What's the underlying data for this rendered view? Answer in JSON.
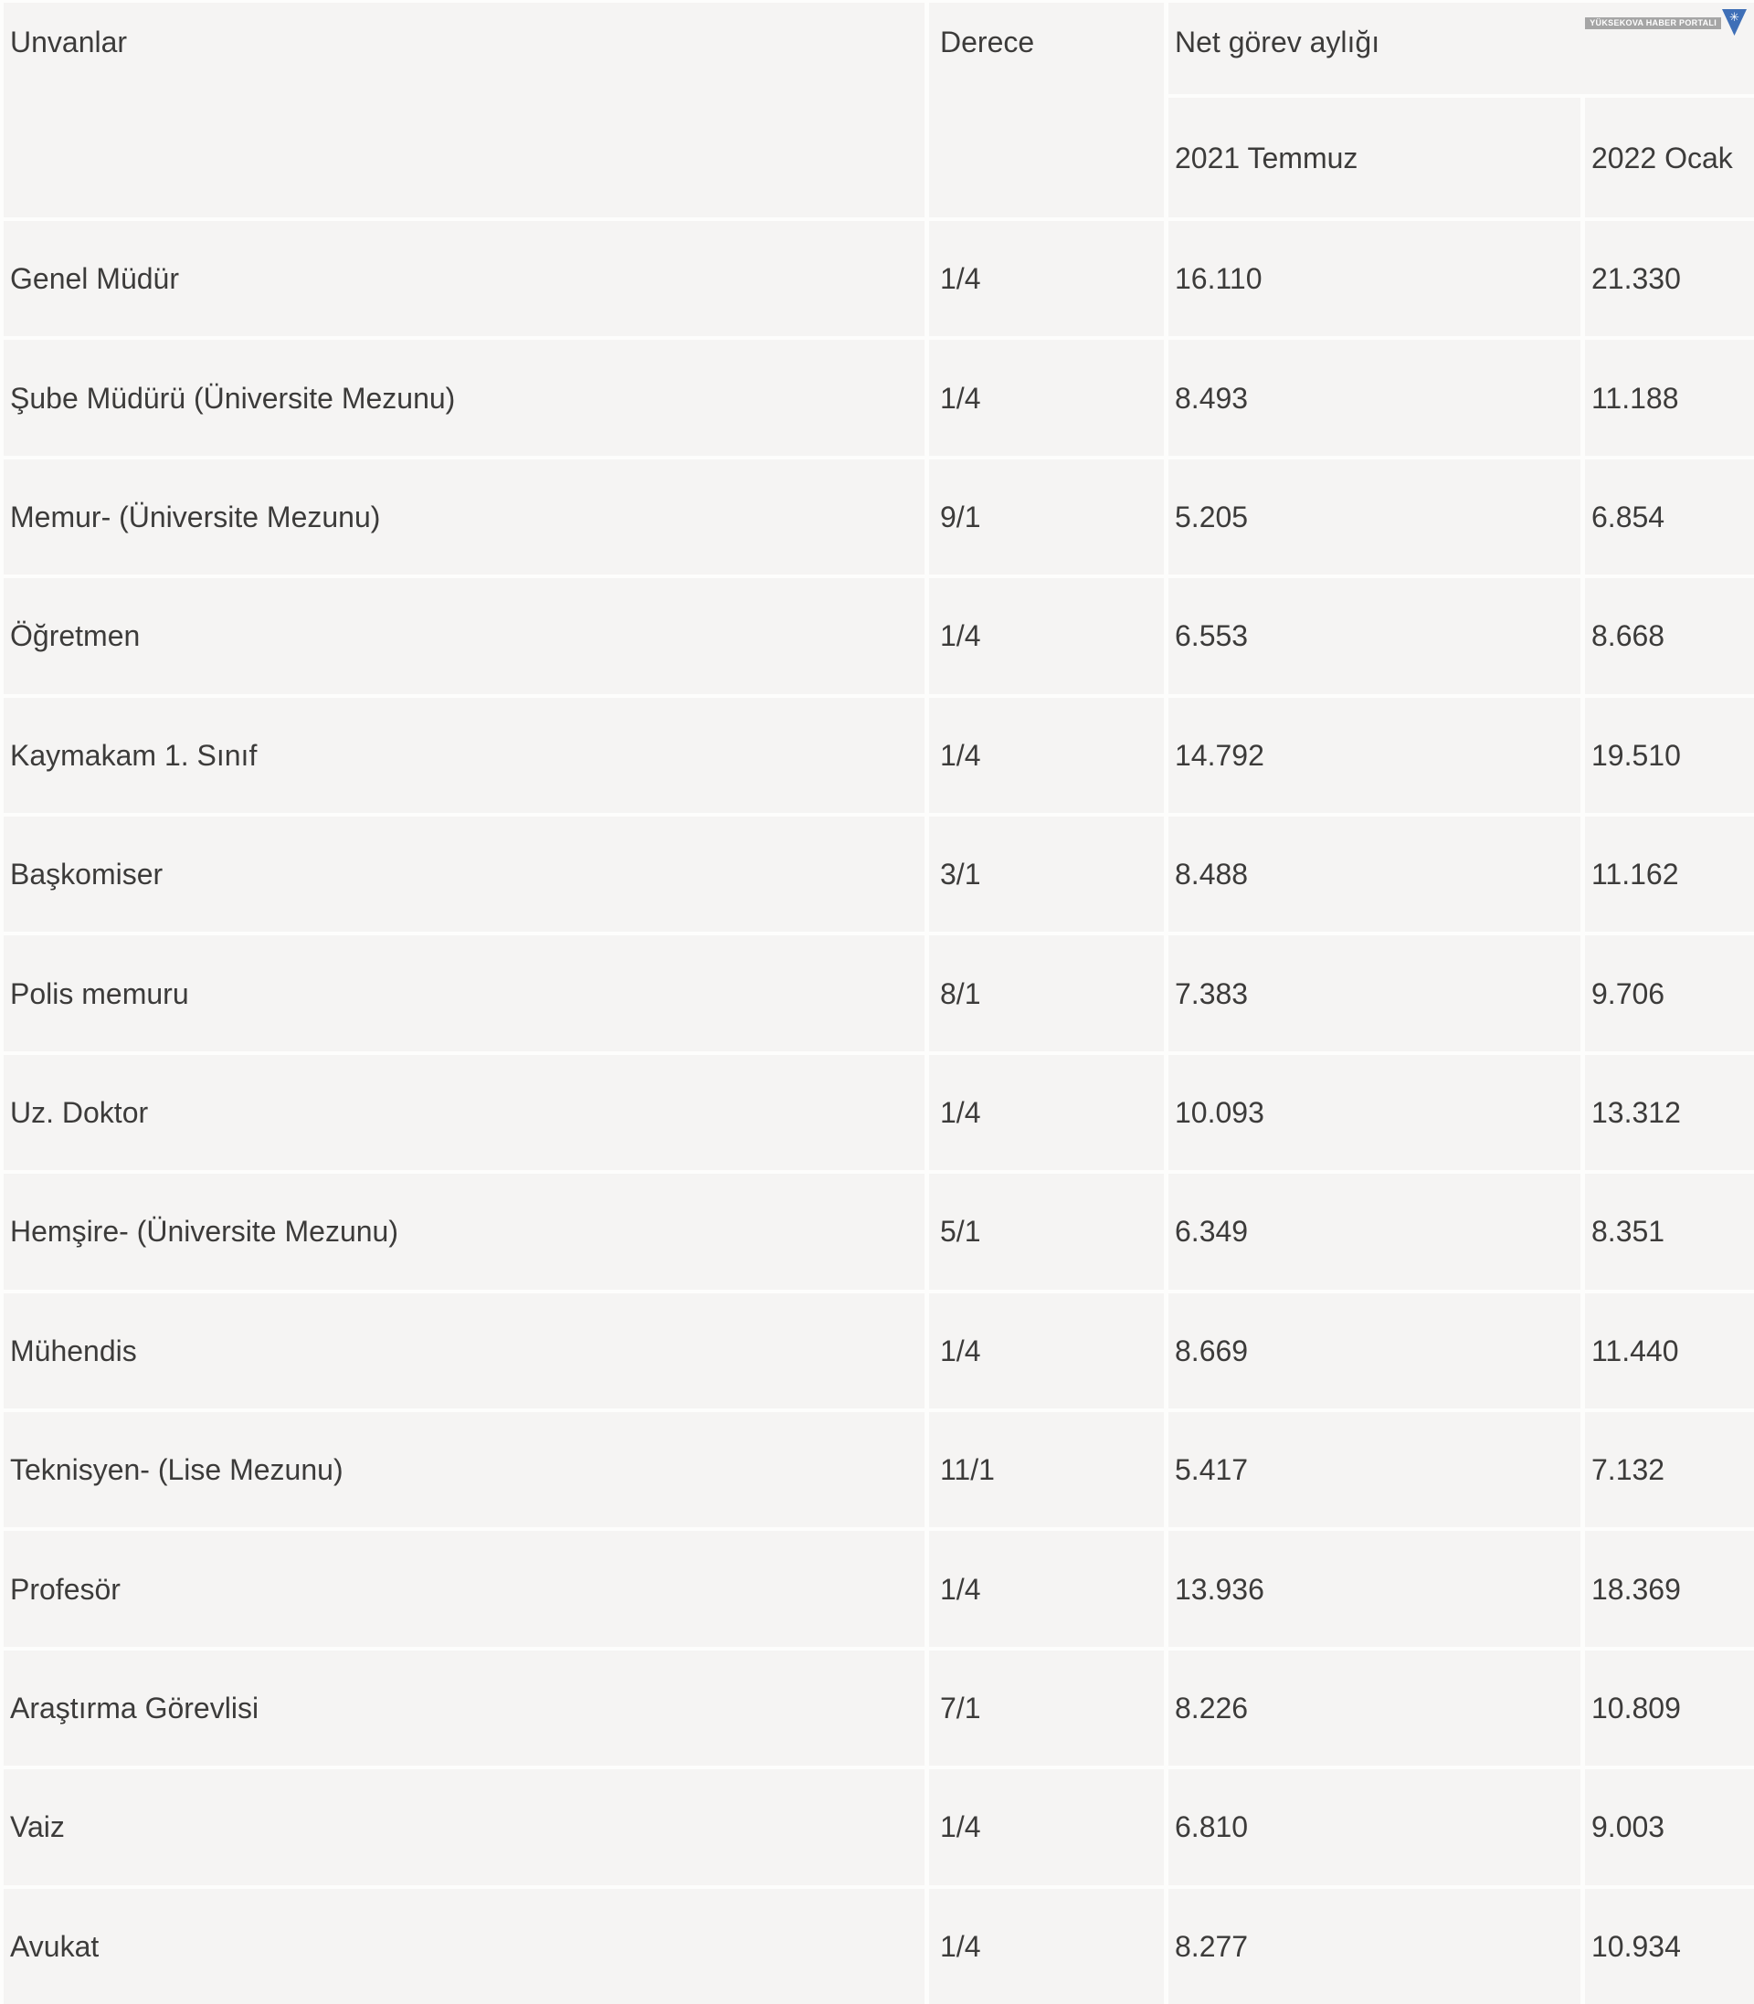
{
  "table": {
    "headers": {
      "unvanlar": "Unvanlar",
      "derece": "Derece",
      "net_gorev_ayligi": "Net görev aylığı",
      "temmuz_2021": "2021 Temmuz",
      "ocak_2022": "2022 Ocak"
    },
    "rows": [
      {
        "title": "Genel Müdür",
        "derece": "1/4",
        "temmuz_2021": "16.110",
        "ocak_2022": "21.330"
      },
      {
        "title": "Şube Müdürü (Üniversite Mezunu)",
        "derece": "1/4",
        "temmuz_2021": "8.493",
        "ocak_2022": "11.188"
      },
      {
        "title": "Memur- (Üniversite Mezunu)",
        "derece": "9/1",
        "temmuz_2021": "5.205",
        "ocak_2022": "6.854"
      },
      {
        "title": "Öğretmen",
        "derece": "1/4",
        "temmuz_2021": "6.553",
        "ocak_2022": "8.668"
      },
      {
        "title": "Kaymakam 1. Sınıf",
        "derece": "1/4",
        "temmuz_2021": "14.792",
        "ocak_2022": "19.510"
      },
      {
        "title": "Başkomiser",
        "derece": "3/1",
        "temmuz_2021": "8.488",
        "ocak_2022": "11.162"
      },
      {
        "title": "Polis memuru",
        "derece": "8/1",
        "temmuz_2021": "7.383",
        "ocak_2022": "9.706"
      },
      {
        "title": "Uz. Doktor",
        "derece": "1/4",
        "temmuz_2021": "10.093",
        "ocak_2022": "13.312"
      },
      {
        "title": "Hemşire- (Üniversite Mezunu)",
        "derece": "5/1",
        "temmuz_2021": "6.349",
        "ocak_2022": "8.351"
      },
      {
        "title": "Mühendis",
        "derece": "1/4",
        "temmuz_2021": "8.669",
        "ocak_2022": "11.440"
      },
      {
        "title": "Teknisyen- (Lise Mezunu)",
        "derece": "11/1",
        "temmuz_2021": "5.417",
        "ocak_2022": "7.132"
      },
      {
        "title": "Profesör",
        "derece": "1/4",
        "temmuz_2021": "13.936",
        "ocak_2022": "18.369"
      },
      {
        "title": "Araştırma Görevlisi",
        "derece": "7/1",
        "temmuz_2021": "8.226",
        "ocak_2022": "10.809"
      },
      {
        "title": "Vaiz",
        "derece": "1/4",
        "temmuz_2021": "6.810",
        "ocak_2022": "9.003"
      },
      {
        "title": "Avukat",
        "derece": "1/4",
        "temmuz_2021": "8.277",
        "ocak_2022": "10.934"
      }
    ]
  },
  "watermark": {
    "text": "YÜKSEKOVA HABER PORTALI",
    "star_icon": "✳",
    "triangle_color": "#3e6fb7",
    "band_color": "rgba(148,148,148,0.82)"
  },
  "colors": {
    "cell_background": "#f5f4f3",
    "divider": "#fdfdfc",
    "text": "#3c3b3a"
  },
  "chart_data": {
    "type": "table",
    "title": "Net görev aylığı",
    "columns": [
      "Unvanlar",
      "Derece",
      "2021 Temmuz",
      "2022 Ocak"
    ],
    "rows": [
      [
        "Genel Müdür",
        "1/4",
        "16.110",
        "21.330"
      ],
      [
        "Şube Müdürü (Üniversite Mezunu)",
        "1/4",
        "8.493",
        "11.188"
      ],
      [
        "Memur- (Üniversite Mezunu)",
        "9/1",
        "5.205",
        "6.854"
      ],
      [
        "Öğretmen",
        "1/4",
        "6.553",
        "8.668"
      ],
      [
        "Kaymakam 1. Sınıf",
        "1/4",
        "14.792",
        "19.510"
      ],
      [
        "Başkomiser",
        "3/1",
        "8.488",
        "11.162"
      ],
      [
        "Polis memuru",
        "8/1",
        "7.383",
        "9.706"
      ],
      [
        "Uz. Doktor",
        "1/4",
        "10.093",
        "13.312"
      ],
      [
        "Hemşire- (Üniversite Mezunu)",
        "5/1",
        "6.349",
        "8.351"
      ],
      [
        "Mühendis",
        "1/4",
        "8.669",
        "11.440"
      ],
      [
        "Teknisyen- (Lise Mezunu)",
        "11/1",
        "5.417",
        "7.132"
      ],
      [
        "Profesör",
        "1/4",
        "13.936",
        "18.369"
      ],
      [
        "Araştırma Görevlisi",
        "7/1",
        "8.226",
        "10.809"
      ],
      [
        "Vaiz",
        "1/4",
        "6.810",
        "9.003"
      ],
      [
        "Avukat",
        "1/4",
        "8.277",
        "10.934"
      ]
    ]
  }
}
